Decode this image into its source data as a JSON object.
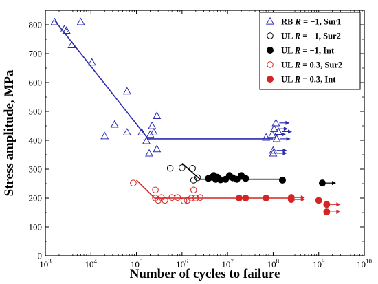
{
  "chart_data": {
    "type": "scatter",
    "xscale": "log",
    "xlabel": "Number of cycles to failure",
    "ylabel": "Stress amplitude, MPa",
    "xlim": [
      1000,
      10000000000
    ],
    "ylim": [
      0,
      850
    ],
    "xticks": [
      {
        "value": 1000,
        "base": "10",
        "exp": "3"
      },
      {
        "value": 10000,
        "base": "10",
        "exp": "4"
      },
      {
        "value": 100000,
        "base": "10",
        "exp": "5"
      },
      {
        "value": 1000000,
        "base": "10",
        "exp": "6"
      },
      {
        "value": 10000000,
        "base": "10",
        "exp": "7"
      },
      {
        "value": 100000000,
        "base": "10",
        "exp": "8"
      },
      {
        "value": 1000000000,
        "base": "10",
        "exp": "9"
      },
      {
        "value": 10000000000,
        "base": "10",
        "exp": "10"
      }
    ],
    "yticks": [
      0,
      100,
      200,
      300,
      400,
      500,
      600,
      700,
      800
    ],
    "grid": false,
    "legend_position": "top-right",
    "series": [
      {
        "name": "RB  R = −1, Sur1",
        "legend_prefix": "RB",
        "legend_r": "R",
        "legend_suffix": " = −1, Sur1",
        "marker": "open-triangle",
        "color": "#2c2cb0",
        "points": [
          [
            1600,
            810
          ],
          [
            2600,
            785
          ],
          [
            2900,
            780
          ],
          [
            3800,
            730
          ],
          [
            6000,
            810
          ],
          [
            10500,
            670
          ],
          [
            20000,
            415
          ],
          [
            33000,
            455
          ],
          [
            62000,
            570
          ],
          [
            62000,
            428
          ],
          [
            130000,
            428
          ],
          [
            165000,
            398
          ],
          [
            190000,
            355
          ],
          [
            200000,
            420
          ],
          [
            220000,
            450
          ],
          [
            240000,
            428
          ],
          [
            280000,
            485
          ],
          [
            280000,
            370
          ]
        ],
        "runouts": [
          [
            105000000,
            440
          ],
          [
            115000000,
            460
          ],
          [
            95000000,
            420
          ],
          [
            120000000,
            405
          ],
          [
            130000000,
            430
          ],
          [
            100000000,
            365
          ],
          [
            100000000,
            355
          ]
        ],
        "censored_points": [
          [
            70000000,
            410
          ]
        ],
        "fit_line": [
          [
            1600,
            815
          ],
          [
            180000,
            405
          ],
          [
            100000000,
            405
          ]
        ]
      },
      {
        "name": "UL  R = −1, Sur2",
        "legend_prefix": "UL",
        "legend_r": "R",
        "legend_suffix": " = −1, Sur2",
        "marker": "open-circle",
        "color": "#000000",
        "points": [
          [
            550000,
            303
          ],
          [
            1000000,
            305
          ],
          [
            1700000,
            303
          ],
          [
            1800000,
            262
          ],
          [
            2200000,
            270
          ]
        ],
        "runouts": []
      },
      {
        "name": "UL  R = −1, Int",
        "legend_prefix": "UL",
        "legend_r": "R",
        "legend_suffix": " = −1, Int",
        "marker": "filled-circle",
        "color": "#000000",
        "points": [
          [
            3800000,
            268
          ],
          [
            4500000,
            272
          ],
          [
            5000000,
            278
          ],
          [
            5500000,
            265
          ],
          [
            6000000,
            272
          ],
          [
            7000000,
            263
          ],
          [
            9000000,
            265
          ],
          [
            11000000,
            278
          ],
          [
            13000000,
            270
          ],
          [
            16000000,
            265
          ],
          [
            20000000,
            278
          ],
          [
            25000000,
            268
          ],
          [
            160000000,
            262
          ]
        ],
        "runouts": [
          [
            1200000000,
            252
          ]
        ],
        "fit_line": [
          [
            1000000,
            320
          ],
          [
            2500000,
            265
          ],
          [
            180000000,
            265
          ]
        ]
      },
      {
        "name": "UL  R = 0.3, Sur2",
        "legend_prefix": "UL",
        "legend_r": "R",
        "legend_suffix": " = 0.3, Sur2",
        "marker": "open-circle",
        "color": "#d42525",
        "points": [
          [
            85000,
            252
          ],
          [
            260000,
            228
          ],
          [
            260000,
            200
          ],
          [
            300000,
            192
          ],
          [
            350000,
            202
          ],
          [
            420000,
            192
          ],
          [
            600000,
            202
          ],
          [
            800000,
            202
          ],
          [
            1100000,
            190
          ],
          [
            1300000,
            192
          ],
          [
            1600000,
            200
          ],
          [
            1800000,
            228
          ],
          [
            2000000,
            200
          ],
          [
            2500000,
            202
          ]
        ],
        "runouts": []
      },
      {
        "name": "UL  R = 0.3, Int",
        "legend_prefix": "UL",
        "legend_r": "R",
        "legend_suffix": " = 0.3, Int",
        "marker": "filled-circle",
        "color": "#d42525",
        "points": [
          [
            18000000,
            200
          ],
          [
            25000000,
            200
          ],
          [
            70000000,
            200
          ],
          [
            1000000000,
            192
          ]
        ],
        "runouts": [
          [
            250000000,
            202
          ],
          [
            250000000,
            195
          ],
          [
            1500000000,
            178
          ],
          [
            1500000000,
            152
          ]
        ],
        "fit_line": [
          [
            100000,
            262
          ],
          [
            250000,
            200
          ],
          [
            260000000,
            200
          ]
        ]
      }
    ]
  }
}
